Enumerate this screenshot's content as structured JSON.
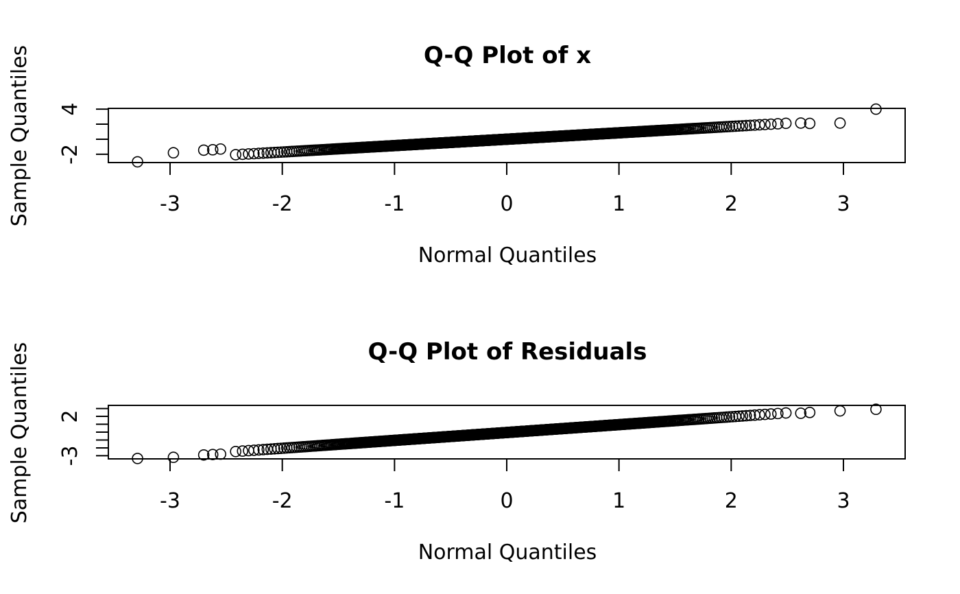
{
  "chart_data": [
    {
      "type": "scatter",
      "title": "Q-Q Plot of x",
      "xlabel": "Normal Quantiles",
      "ylabel": "Sample Quantiles",
      "xlim": [
        -3.55,
        3.55
      ],
      "ylim": [
        -3.1,
        4.1
      ],
      "x_ticks": [
        -3,
        -2,
        -1,
        0,
        1,
        2,
        3
      ],
      "y_ticks": [
        -2,
        0,
        2,
        4
      ],
      "y_tick_labels": [
        "-2",
        "",
        "",
        "4"
      ],
      "marker": "open-circle",
      "grid": false,
      "n_points": 700,
      "fit": {
        "intercept": 0.0,
        "slope": 0.85
      },
      "x": [
        -3.29,
        -2.97,
        -2.81,
        -2.7,
        -2.62,
        -2.55,
        2.55,
        2.62,
        2.7,
        2.81,
        2.97,
        3.29
      ],
      "y": [
        -3.0,
        -1.8,
        -1.55,
        -1.45,
        -1.4,
        -1.3,
        2.1,
        2.15,
        2.1,
        2.1,
        2.15,
        4.0
      ]
    },
    {
      "type": "scatter",
      "title": "Q-Q Plot of Residuals",
      "xlabel": "Normal Quantiles",
      "ylabel": "Sample Quantiles",
      "xlim": [
        -3.55,
        3.55
      ],
      "ylim": [
        -3.4,
        3.4
      ],
      "x_ticks": [
        -3,
        -2,
        -1,
        0,
        1,
        2,
        3
      ],
      "y_ticks": [
        -3,
        -2,
        -1,
        0,
        1,
        2,
        3
      ],
      "y_tick_labels": [
        "-3",
        "",
        "",
        "",
        "",
        "2",
        ""
      ],
      "marker": "open-circle",
      "grid": false,
      "n_points": 700,
      "fit": {
        "intercept": -0.05,
        "slope": 1.0
      },
      "x": [
        -3.29,
        -2.97,
        -2.81,
        -2.7,
        -2.62,
        -2.55,
        2.55,
        2.62,
        2.7,
        2.81,
        2.97,
        3.29
      ],
      "y": [
        -3.35,
        -3.2,
        -3.05,
        -2.9,
        -2.85,
        -2.8,
        2.35,
        2.4,
        2.5,
        2.6,
        2.7,
        2.9
      ]
    }
  ]
}
